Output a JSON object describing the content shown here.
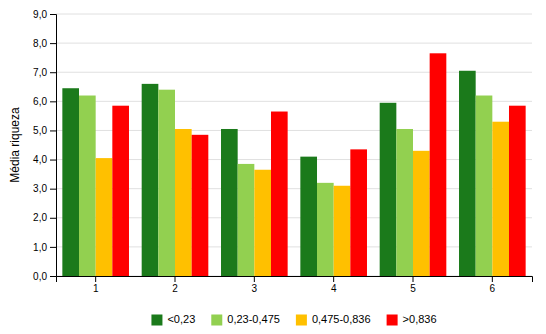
{
  "chart_data": {
    "type": "bar",
    "ylabel": "Média riqueza",
    "categories": [
      "1",
      "2",
      "3",
      "4",
      "5",
      "6"
    ],
    "series": [
      {
        "name": "<0,23",
        "color": "#1B7A1B",
        "values": [
          6.45,
          6.6,
          5.05,
          4.1,
          5.95,
          7.05
        ]
      },
      {
        "name": "0,23-0,475",
        "color": "#92D050",
        "values": [
          6.2,
          6.4,
          3.85,
          3.2,
          5.05,
          6.2
        ]
      },
      {
        "name": "0,475-0,836",
        "color": "#FFC000",
        "values": [
          4.05,
          5.05,
          3.65,
          3.1,
          4.3,
          5.3
        ]
      },
      {
        "name": ">0,836",
        "color": "#FF0000",
        "values": [
          5.85,
          4.85,
          5.65,
          4.35,
          7.65,
          5.85
        ]
      }
    ],
    "ylim": [
      0,
      9.0
    ],
    "yticks": [
      {
        "value": 0.0,
        "label": "0,0"
      },
      {
        "value": 1.0,
        "label": "1,0"
      },
      {
        "value": 2.0,
        "label": "2,0"
      },
      {
        "value": 3.0,
        "label": "3,0"
      },
      {
        "value": 4.0,
        "label": "4,0"
      },
      {
        "value": 5.0,
        "label": "5,0"
      },
      {
        "value": 6.0,
        "label": "6,0"
      },
      {
        "value": 7.0,
        "label": "7,0"
      },
      {
        "value": 8.0,
        "label": "8,0"
      },
      {
        "value": 9.0,
        "label": "9,0"
      }
    ],
    "grid": true,
    "legend": "bottom"
  }
}
